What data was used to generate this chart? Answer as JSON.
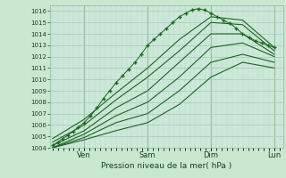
{
  "title": "",
  "xlabel": "Pression niveau de la mer( hPa )",
  "ylabel": "",
  "bg_color": "#c8e8d0",
  "plot_bg_color": "#cce8d8",
  "grid_major_color": "#a8c8b8",
  "grid_minor_color": "#b8d8c8",
  "line_color": "#1a6620",
  "dot_color": "#1a6620",
  "ylim": [
    1004,
    1016.5
  ],
  "yticks": [
    1004,
    1005,
    1006,
    1007,
    1008,
    1009,
    1010,
    1011,
    1012,
    1013,
    1014,
    1015,
    1016
  ],
  "series": [
    {
      "x": [
        0.0,
        0.04,
        0.08,
        0.12,
        0.16,
        0.2,
        0.25,
        0.3,
        0.35,
        0.4,
        0.45,
        0.5,
        0.55,
        0.6,
        0.65,
        0.7,
        0.75,
        0.8,
        0.85,
        0.9,
        0.95,
        1.0,
        1.05,
        1.1,
        1.15,
        1.2,
        1.25,
        1.3,
        1.35,
        1.4,
        1.45,
        1.5,
        1.55,
        1.6,
        1.65,
        1.7,
        1.75
      ],
      "y": [
        1004.2,
        1004.5,
        1004.8,
        1005.1,
        1005.4,
        1005.8,
        1006.2,
        1006.8,
        1007.5,
        1008.3,
        1009.0,
        1009.7,
        1010.3,
        1010.9,
        1011.5,
        1012.2,
        1013.0,
        1013.5,
        1014.0,
        1014.5,
        1015.0,
        1015.5,
        1015.8,
        1016.1,
        1016.2,
        1016.1,
        1015.8,
        1015.5,
        1015.2,
        1014.9,
        1014.5,
        1014.0,
        1013.7,
        1013.4,
        1013.2,
        1013.0,
        1012.8
      ],
      "style": "dotted"
    },
    {
      "x": [
        0.0,
        0.25,
        0.5,
        0.75,
        1.0,
        1.25,
        1.5,
        1.75
      ],
      "y": [
        1004.8,
        1006.5,
        1008.8,
        1011.0,
        1013.5,
        1015.5,
        1015.2,
        1012.8
      ],
      "style": "line"
    },
    {
      "x": [
        0.0,
        0.25,
        0.5,
        0.75,
        1.0,
        1.25,
        1.5,
        1.75
      ],
      "y": [
        1004.5,
        1006.0,
        1008.2,
        1010.2,
        1012.5,
        1015.0,
        1014.8,
        1012.5
      ],
      "style": "line"
    },
    {
      "x": [
        0.0,
        0.25,
        0.5,
        0.75,
        1.0,
        1.25,
        1.5,
        1.75
      ],
      "y": [
        1004.2,
        1005.5,
        1007.5,
        1009.0,
        1011.5,
        1014.0,
        1014.0,
        1012.2
      ],
      "style": "line"
    },
    {
      "x": [
        0.0,
        0.25,
        0.5,
        0.75,
        1.0,
        1.25,
        1.5,
        1.75
      ],
      "y": [
        1004.0,
        1005.2,
        1006.8,
        1008.0,
        1010.2,
        1012.8,
        1013.2,
        1012.0
      ],
      "style": "line"
    },
    {
      "x": [
        0.0,
        0.25,
        0.5,
        0.75,
        1.0,
        1.25,
        1.5,
        1.75
      ],
      "y": [
        1004.0,
        1004.9,
        1006.2,
        1007.0,
        1009.0,
        1011.5,
        1012.2,
        1011.5
      ],
      "style": "line"
    },
    {
      "x": [
        0.0,
        0.25,
        0.5,
        0.75,
        1.0,
        1.25,
        1.5,
        1.75
      ],
      "y": [
        1004.0,
        1004.7,
        1005.5,
        1006.2,
        1007.8,
        1010.2,
        1011.5,
        1011.0
      ],
      "style": "line"
    }
  ],
  "vlines": [
    0.25,
    0.75,
    1.25,
    1.75
  ],
  "xtick_positions": [
    0.25,
    0.75,
    1.25,
    1.75
  ],
  "xtick_labels": [
    "Ven",
    "Sam",
    "Dim",
    "Lun"
  ],
  "xlim": [
    -0.02,
    1.82
  ]
}
